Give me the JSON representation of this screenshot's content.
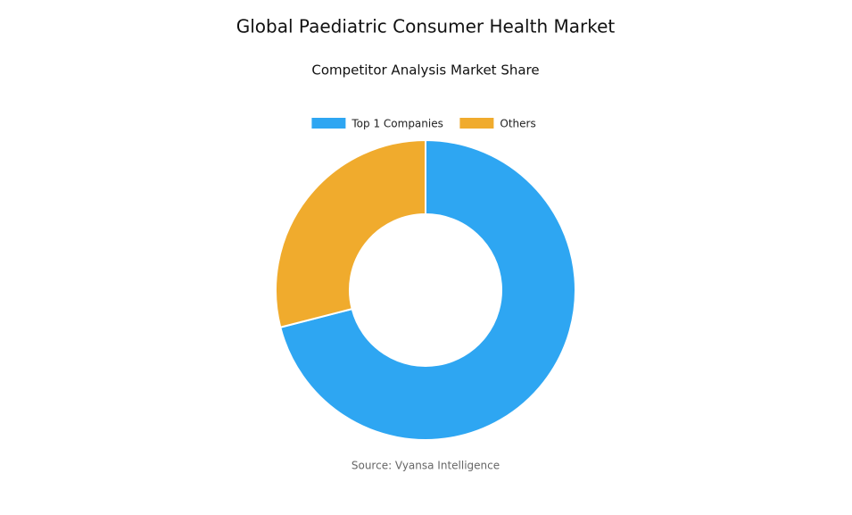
{
  "chart_data": {
    "type": "donut",
    "title": "Global Paediatric Consumer Health Market",
    "subtitle": "Competitor Analysis Market Share",
    "categories": [
      "Top 1 Companies",
      "Others"
    ],
    "values": [
      71,
      29
    ],
    "colors": [
      "#2ea6f2",
      "#f0ab2d"
    ],
    "source": "Source: Vyansa Intelligence",
    "legend": "top"
  }
}
